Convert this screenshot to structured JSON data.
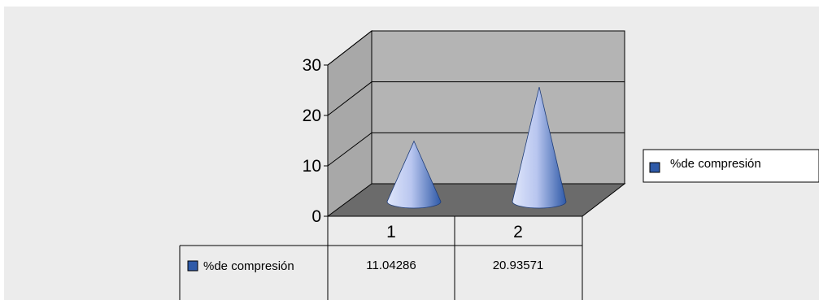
{
  "chart_data": {
    "type": "bar",
    "bar_shape": "cone-3d",
    "categories": [
      "1",
      "2"
    ],
    "series": [
      {
        "name": "%de compresión",
        "values": [
          11.04286,
          20.93571
        ],
        "color": "#2f5aa8"
      }
    ],
    "yticks": [
      0,
      10,
      20,
      30
    ],
    "ylim": [
      0,
      30
    ],
    "legend_position": "right",
    "data_table": true,
    "grid": true
  },
  "colors": {
    "background": "#ececec",
    "wall": "#b4b4b4",
    "wall_side": "#a8a8a8",
    "floor": "#6b6b6b",
    "grid_line": "#000000",
    "cone_light": "#dfe6fb",
    "cone_dark": "#2f5aa8"
  },
  "table": {
    "series_label": "%de compresión",
    "values": [
      "11.04286",
      "20.93571"
    ]
  },
  "legend": {
    "label": "%de compresión"
  }
}
